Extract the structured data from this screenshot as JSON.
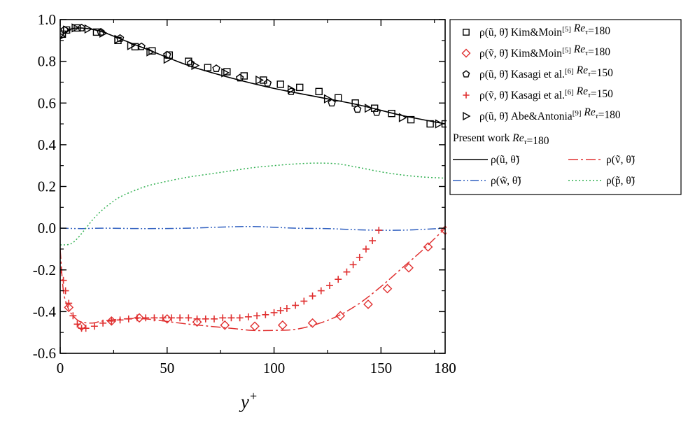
{
  "chart_data": {
    "type": "scatter",
    "title": "",
    "xlabel": "y+",
    "ylabel": "",
    "xlim": [
      0,
      180
    ],
    "ylim": [
      -0.6,
      1.0
    ],
    "x_ticks": [
      0,
      50,
      100,
      150,
      180
    ],
    "x_tick_labels": [
      "0",
      "50",
      "100",
      "150",
      "180"
    ],
    "y_ticks": [
      1.0,
      0.8,
      0.6,
      0.4,
      0.2,
      0.0,
      -0.2,
      -0.4,
      -0.6
    ],
    "y_tick_labels": [
      "1.0",
      "0.8",
      "0.6",
      "0.4",
      "0.2",
      "0.0",
      "-0.2",
      "-0.4",
      "-0.6"
    ],
    "grid": false,
    "legend_position": "right",
    "legend_present_work_label": "Present work Re_τ=180",
    "series": [
      {
        "name": "ρ(ũ, θ̃) Kim&Moin[5] Re_τ=180",
        "kind": "markers",
        "marker": "square",
        "color": "#000000",
        "x": [
          1,
          3,
          8,
          17,
          27,
          35,
          43,
          51,
          60,
          69,
          78,
          86,
          95,
          103,
          112,
          121,
          130,
          138,
          147,
          155,
          164,
          173,
          180
        ],
        "y": [
          0.93,
          0.95,
          0.96,
          0.94,
          0.9,
          0.87,
          0.85,
          0.83,
          0.8,
          0.77,
          0.75,
          0.73,
          0.71,
          0.69,
          0.675,
          0.655,
          0.625,
          0.6,
          0.575,
          0.55,
          0.52,
          0.5,
          0.5
        ]
      },
      {
        "name": "ρ(ṽ, θ̃) Kim&Moin[5] Re_τ=180",
        "kind": "markers",
        "marker": "diamond",
        "color": "#e03030",
        "x": [
          4,
          10,
          24,
          37,
          50,
          64,
          77,
          91,
          104,
          118,
          131,
          144,
          153,
          163,
          172,
          180
        ],
        "y": [
          -0.38,
          -0.47,
          -0.445,
          -0.43,
          -0.435,
          -0.45,
          -0.465,
          -0.47,
          -0.465,
          -0.455,
          -0.42,
          -0.365,
          -0.29,
          -0.19,
          -0.09,
          -0.01
        ]
      },
      {
        "name": "ρ(ũ, θ̃) Kasagi et al.[6] Re_τ=150",
        "kind": "markers",
        "marker": "pentagon",
        "color": "#000000",
        "x": [
          2,
          10,
          19,
          28,
          38,
          50,
          61,
          73,
          84,
          97,
          108,
          127,
          139,
          148
        ],
        "y": [
          0.95,
          0.96,
          0.94,
          0.91,
          0.87,
          0.83,
          0.79,
          0.765,
          0.72,
          0.695,
          0.655,
          0.6,
          0.57,
          0.555
        ]
      },
      {
        "name": "ρ(ṽ, θ̃) Kasagi et al.[6] Re_τ=150",
        "kind": "markers",
        "marker": "plus",
        "color": "#e03030",
        "x": [
          0.5,
          1.5,
          2.5,
          4,
          6,
          8,
          10,
          12,
          16,
          20,
          24,
          28,
          32,
          36,
          40,
          44,
          48,
          52,
          56,
          60,
          64,
          68,
          72,
          76,
          80,
          84,
          88,
          92,
          96,
          100,
          103,
          106,
          110,
          114,
          118,
          122,
          126,
          130,
          134,
          137,
          140,
          143,
          146,
          149
        ],
        "y": [
          -0.2,
          -0.25,
          -0.3,
          -0.36,
          -0.42,
          -0.46,
          -0.48,
          -0.48,
          -0.47,
          -0.455,
          -0.445,
          -0.44,
          -0.435,
          -0.43,
          -0.43,
          -0.43,
          -0.43,
          -0.43,
          -0.43,
          -0.43,
          -0.435,
          -0.435,
          -0.435,
          -0.43,
          -0.43,
          -0.43,
          -0.425,
          -0.42,
          -0.415,
          -0.405,
          -0.395,
          -0.385,
          -0.37,
          -0.35,
          -0.325,
          -0.3,
          -0.275,
          -0.245,
          -0.21,
          -0.175,
          -0.14,
          -0.1,
          -0.06,
          -0.01
        ]
      },
      {
        "name": "ρ(ũ, θ̃) Abe&Antonia[9] Re_τ=180",
        "kind": "markers",
        "marker": "triangle-right",
        "color": "#000000",
        "x": [
          0.5,
          3,
          7,
          13,
          20,
          27,
          33,
          42,
          50,
          63,
          77,
          93,
          108,
          125,
          144,
          160,
          177
        ],
        "y": [
          0.92,
          0.95,
          0.96,
          0.955,
          0.935,
          0.905,
          0.875,
          0.845,
          0.81,
          0.78,
          0.745,
          0.71,
          0.665,
          0.62,
          0.575,
          0.53,
          0.5
        ]
      },
      {
        "name": "ρ(ũ, θ̃)",
        "kind": "line",
        "dash": "solid",
        "color": "#000000",
        "x": [
          0,
          2,
          5,
          9,
          14,
          20,
          30,
          40,
          60,
          80,
          100,
          120,
          140,
          160,
          180
        ],
        "y": [
          0.91,
          0.935,
          0.955,
          0.96,
          0.955,
          0.94,
          0.9,
          0.86,
          0.78,
          0.72,
          0.67,
          0.63,
          0.59,
          0.54,
          0.5
        ]
      },
      {
        "name": "ρ(ṽ, θ̃)",
        "kind": "line",
        "dash": "dash-dot",
        "color": "#e03030",
        "x": [
          0,
          1,
          2,
          4,
          6,
          8,
          10,
          15,
          20,
          30,
          40,
          60,
          80,
          90,
          100,
          110,
          120,
          130,
          140,
          150,
          160,
          170,
          180
        ],
        "y": [
          -0.1,
          -0.25,
          -0.33,
          -0.39,
          -0.42,
          -0.44,
          -0.45,
          -0.455,
          -0.445,
          -0.435,
          -0.435,
          -0.46,
          -0.48,
          -0.49,
          -0.49,
          -0.485,
          -0.46,
          -0.42,
          -0.36,
          -0.28,
          -0.19,
          -0.1,
          0.0
        ]
      },
      {
        "name": "ρ(w̃, θ̃)",
        "kind": "line",
        "dash": "dash-dot-dot",
        "color": "#3060c0",
        "x": [
          0,
          10,
          20,
          40,
          60,
          75,
          90,
          110,
          125,
          140,
          155,
          165,
          180
        ],
        "y": [
          0.0,
          -0.002,
          0.0,
          -0.002,
          0.0,
          0.005,
          0.008,
          0.0,
          -0.002,
          -0.008,
          -0.01,
          -0.008,
          0.0
        ]
      },
      {
        "name": "ρ(p̃, θ̃)",
        "kind": "line",
        "dash": "dotted",
        "color": "#30b050",
        "x": [
          0,
          2,
          5,
          8,
          12,
          16,
          20,
          25,
          30,
          40,
          50,
          60,
          70,
          80,
          90,
          100,
          110,
          120,
          130,
          140,
          150,
          160,
          170,
          180
        ],
        "y": [
          -0.08,
          -0.08,
          -0.075,
          -0.05,
          0.0,
          0.05,
          0.09,
          0.13,
          0.16,
          0.2,
          0.225,
          0.245,
          0.26,
          0.275,
          0.29,
          0.3,
          0.308,
          0.312,
          0.308,
          0.29,
          0.27,
          0.255,
          0.245,
          0.24
        ]
      }
    ]
  }
}
